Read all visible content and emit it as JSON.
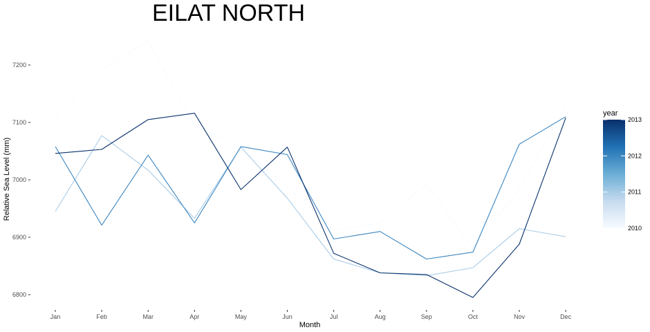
{
  "chart_data": {
    "type": "line",
    "title": "EILAT NORTH",
    "xlabel": "Month",
    "ylabel": "Relative Sea Level (mm)",
    "categories": [
      "Jan",
      "Feb",
      "Mar",
      "Apr",
      "May",
      "Jun",
      "Jul",
      "Aug",
      "Sep",
      "Oct",
      "Nov",
      "Dec"
    ],
    "yticks": [
      6800,
      6900,
      7000,
      7100,
      7200
    ],
    "ylim": [
      6775,
      7250
    ],
    "grid": false,
    "legend": {
      "title": "year",
      "position": "right",
      "type": "colorbar",
      "range": [
        2010,
        2013
      ],
      "ticks": [
        2010,
        2011,
        2012,
        2013
      ],
      "colors": [
        "#f7fbff",
        "#c6dbef",
        "#6baed6",
        "#2171b5",
        "#08306b"
      ]
    },
    "series": [
      {
        "year": 2010,
        "values": [
          7110,
          7192,
          7242,
          7095,
          7057,
          6988,
          6912,
          6925,
          6993,
          6880,
          6985,
          7128
        ]
      },
      {
        "year": 2011,
        "values": [
          6945,
          7077,
          7017,
          6933,
          7057,
          6968,
          6862,
          6838,
          6833,
          6847,
          6915,
          6901
        ]
      },
      {
        "year": 2012,
        "values": [
          7058,
          6921,
          7043,
          6925,
          7058,
          7044,
          6897,
          6910,
          6862,
          6874,
          7062,
          7110
        ]
      },
      {
        "year": 2013,
        "values": [
          7046,
          7053,
          7105,
          7116,
          6983,
          7057,
          6872,
          6838,
          6835,
          6795,
          6888,
          7108
        ]
      }
    ]
  }
}
